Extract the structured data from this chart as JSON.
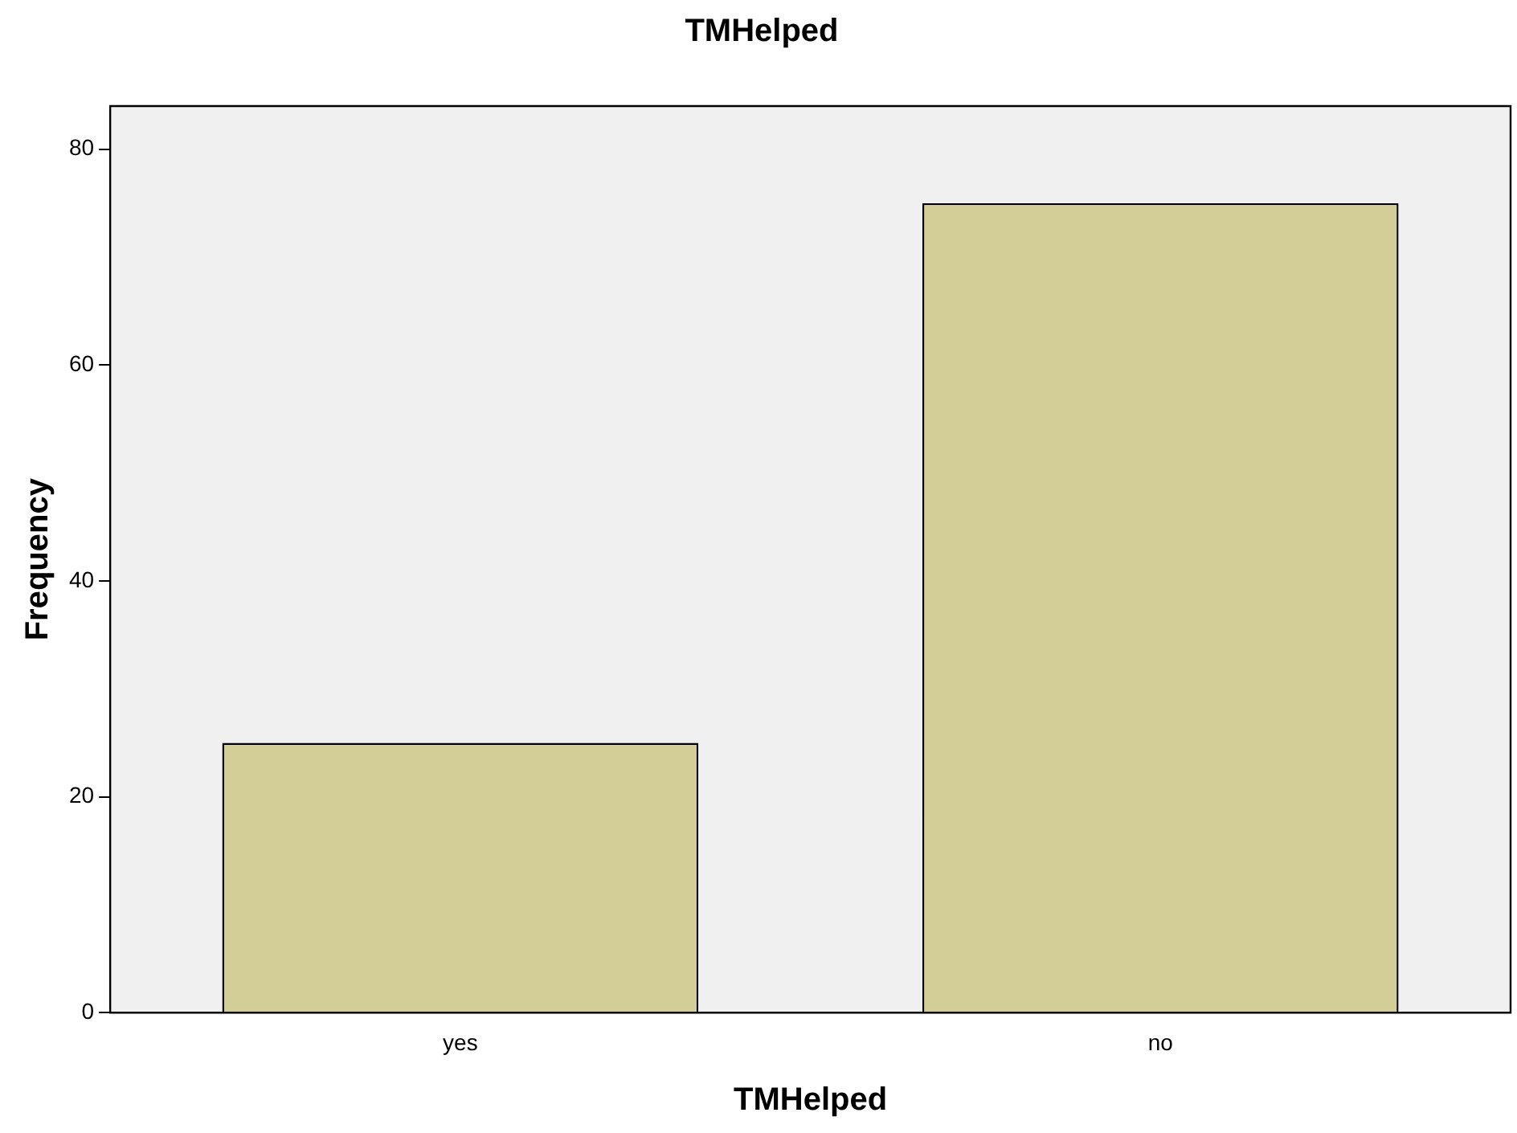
{
  "chart_data": {
    "type": "bar",
    "title": "TMHelped",
    "xlabel": "TMHelped",
    "ylabel": "Frequency",
    "categories": [
      "yes",
      "no"
    ],
    "values": [
      25,
      75
    ],
    "color": "#d3cd97",
    "ylim": [
      0,
      84
    ],
    "yticks": [
      0,
      20,
      40,
      60,
      80
    ],
    "grid": false,
    "legend": false
  }
}
